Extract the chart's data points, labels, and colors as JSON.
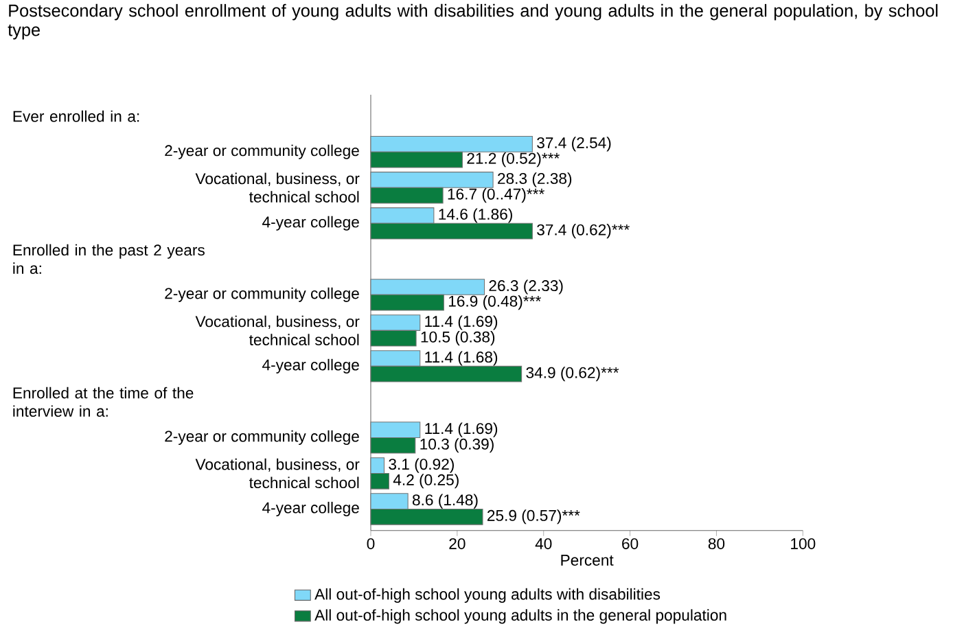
{
  "chart_data": {
    "type": "bar",
    "orientation": "horizontal",
    "title": "Postsecondary school enrollment of young adults with disabilities and young adults in the general population, by school type",
    "xlabel": "Percent",
    "annotations": [
      "Ever enrolled in a:",
      "Enrolled in the past 2 years in a:",
      "Enrolled at the time of the interview in a:"
    ],
    "categories": [
      null,
      "2-year or community college",
      "Vocational, business, or technical school",
      "4-year college",
      null,
      "2-year or community college",
      "Vocational, business, or technical school",
      "4-year college",
      null,
      "2-year or community college",
      "Vocational, business, or technical school",
      "4-year college"
    ],
    "series": [
      {
        "name": "All out-of-high school young adults with disabilities",
        "color": "#80d8f8",
        "values": [
          null,
          37.4,
          28.3,
          14.6,
          null,
          26.3,
          11.4,
          11.4,
          null,
          11.4,
          3.1,
          8.6
        ],
        "value_labels": [
          null,
          "37.4 (2.54)",
          "28.3 (2.38)",
          "14.6 (1.86)",
          null,
          "26.3 (2.33)",
          "11.4 (1.69)",
          "11.4 (1.68)",
          null,
          "11.4 (1.69)",
          "3.1 (0.92)",
          "8.6 (1.48)"
        ]
      },
      {
        "name": "All out-of-high school young adults in the general population",
        "color": "#0a7d40",
        "values": [
          null,
          21.2,
          16.7,
          37.4,
          null,
          16.9,
          10.5,
          34.9,
          null,
          10.3,
          4.2,
          25.9
        ],
        "value_labels": [
          null,
          "21.2 (0.52)***",
          "16.7 (0..47)***",
          "37.4 (0.62)***",
          null,
          "16.9 (0.48)***",
          "10.5 (0.38)",
          "34.9 (0.62)***",
          null,
          "10.3 (0.39)",
          "4.2 (0.25)",
          "25.9 (0.57)***"
        ]
      }
    ],
    "xlim": [
      0,
      100
    ],
    "xticks": [
      0,
      20,
      40,
      60,
      80,
      100
    ],
    "legend": "bottom"
  }
}
